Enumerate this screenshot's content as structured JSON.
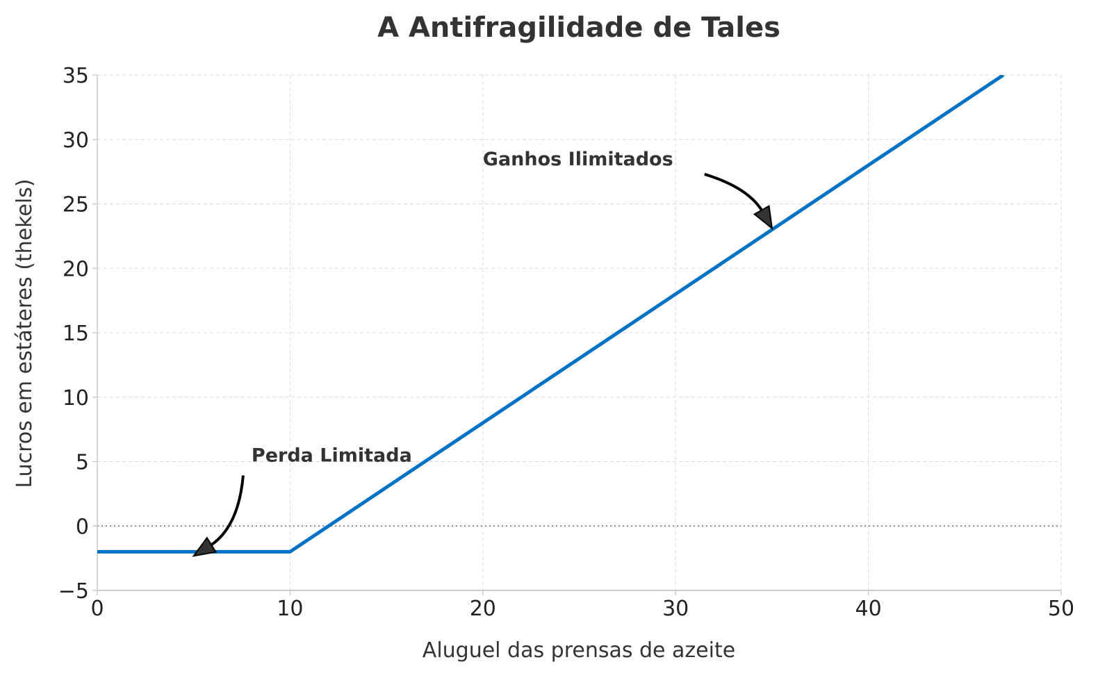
{
  "chart_data": {
    "type": "line",
    "title": "A Antifragilidade de Tales",
    "xlabel": "Aluguel das prensas de azeite",
    "ylabel": "Lucros em estáteres (thekels)",
    "xlim": [
      0,
      50
    ],
    "ylim": [
      -5,
      35
    ],
    "x_ticks": [
      0,
      10,
      20,
      30,
      40,
      50
    ],
    "x_tick_labels": [
      "0",
      "10",
      "20",
      "30",
      "40",
      "50"
    ],
    "y_ticks": [
      -5,
      0,
      5,
      10,
      15,
      20,
      25,
      30,
      35
    ],
    "y_tick_labels": [
      "−5",
      "0",
      "5",
      "10",
      "15",
      "20",
      "25",
      "30",
      "35"
    ],
    "grid": true,
    "series": [
      {
        "color": "#0072c6",
        "x": [
          0,
          10,
          47
        ],
        "y": [
          -2,
          -2,
          35
        ]
      }
    ],
    "reference_line": {
      "y": 0,
      "style": "dotted",
      "color": "#888888"
    },
    "annotations": [
      {
        "text": "Perda Limitada",
        "point": [
          5,
          -2
        ],
        "text_pos": [
          8,
          5
        ]
      },
      {
        "text": "Ganhos Ilimitados",
        "point": [
          35,
          23
        ],
        "text_pos": [
          20,
          28
        ]
      }
    ]
  }
}
